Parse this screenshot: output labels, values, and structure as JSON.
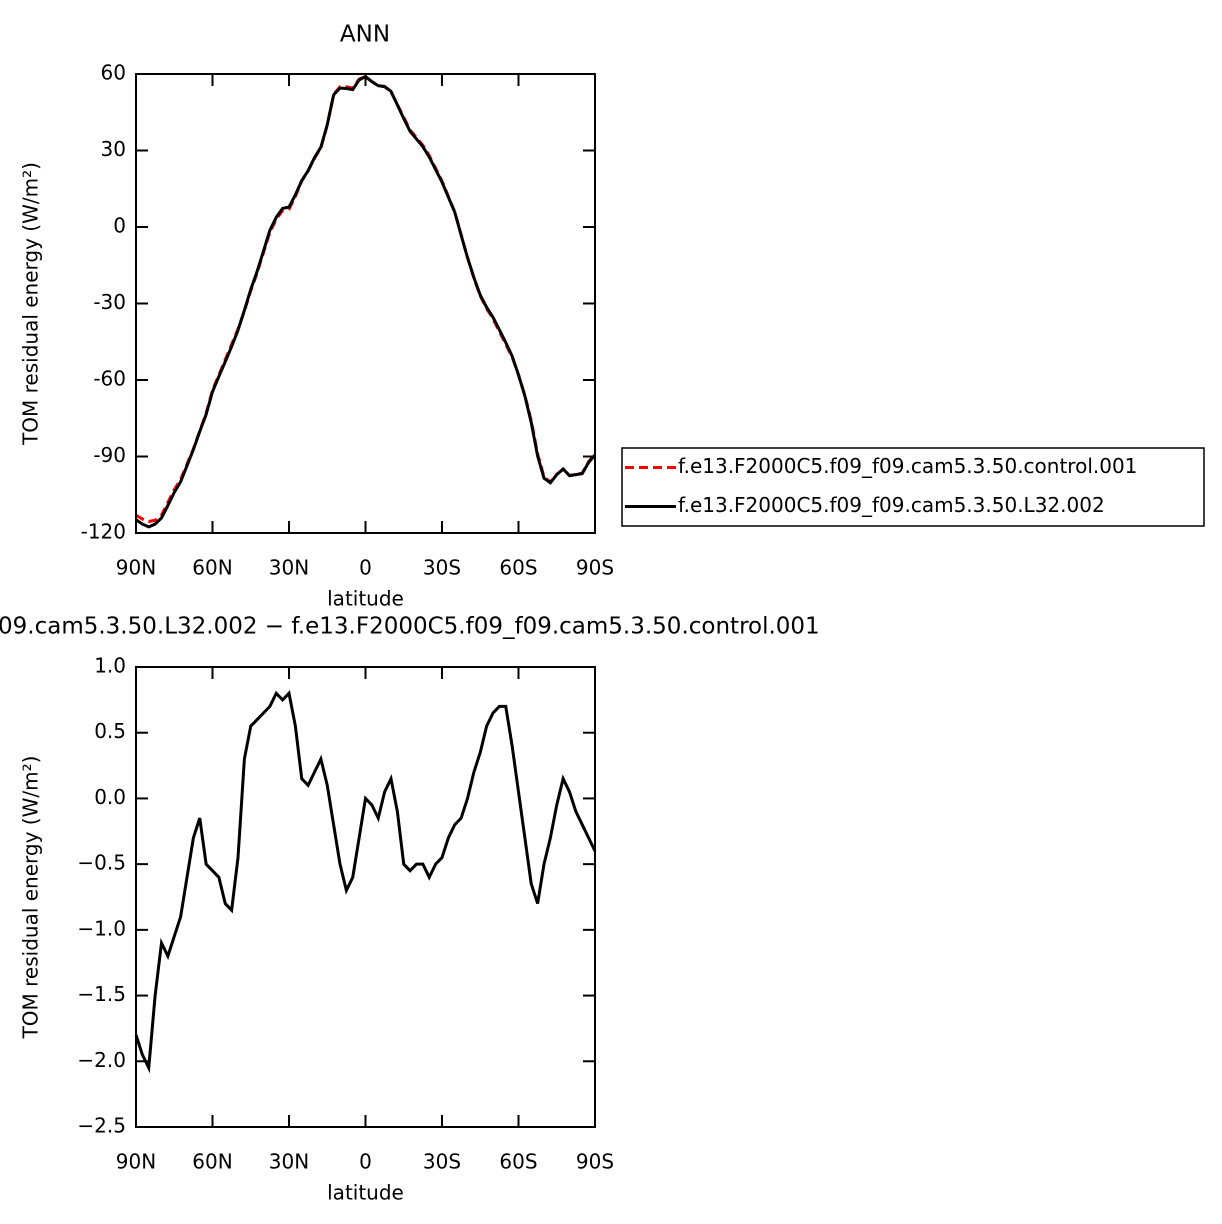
{
  "chart_data": [
    {
      "type": "line",
      "title": "ANN",
      "xlabel": "latitude",
      "ylabel": "TOM residual energy (W/m²)",
      "x": [
        90,
        87.5,
        85,
        82.5,
        80,
        77.5,
        75,
        72.5,
        70,
        67.5,
        65,
        62.5,
        60,
        57.5,
        55,
        52.5,
        50,
        47.5,
        45,
        42.5,
        40,
        37.5,
        35,
        32.5,
        30,
        27.5,
        25,
        22.5,
        20,
        17.5,
        15,
        12.5,
        10,
        7.5,
        5,
        2.5,
        0,
        -2.5,
        -5,
        -7.5,
        -10,
        -12.5,
        -15,
        -17.5,
        -20,
        -22.5,
        -25,
        -27.5,
        -30,
        -32.5,
        -35,
        -37.5,
        -40,
        -42.5,
        -45,
        -47.5,
        -50,
        -52.5,
        -55,
        -57.5,
        -60,
        -62.5,
        -65,
        -67.5,
        -70,
        -72.5,
        -75,
        -77.5,
        -80,
        -82.5,
        -85,
        -87.5,
        -90
      ],
      "series": [
        {
          "name": "f.e13.F2000C5.f09_f09.cam5.3.50.control.001",
          "color": "#ff0000",
          "linestyle": "dashed",
          "values": [
            -113,
            -114.5,
            -115.5,
            -115,
            -113,
            -108,
            -103,
            -99,
            -93,
            -87,
            -80,
            -73,
            -64,
            -58,
            -52,
            -46,
            -40,
            -33,
            -25,
            -18,
            -10,
            -2,
            3,
            6.5,
            7,
            12,
            18,
            22,
            27,
            31,
            40,
            52,
            55,
            55,
            54.5,
            58,
            59,
            57,
            55.5,
            55,
            53,
            48,
            43,
            38,
            35,
            32,
            28,
            23,
            18,
            12,
            6,
            -3,
            -12,
            -20,
            -27,
            -32,
            -36,
            -41,
            -46,
            -51,
            -58,
            -66,
            -76,
            -89,
            -98,
            -100,
            -97,
            -95,
            -97.5,
            -97,
            -96.5,
            -92,
            -89
          ]
        },
        {
          "name": "f.e13.F2000C5.f09_f09.cam5.3.50.L32.002",
          "color": "#000000",
          "linestyle": "solid",
          "values": [
            -114.8,
            -116.5,
            -117.6,
            -116.5,
            -114.1,
            -109.2,
            -104.1,
            -99.9,
            -93.6,
            -87.3,
            -80.2,
            -73.5,
            -64.6,
            -58.6,
            -52.8,
            -46.9,
            -40.5,
            -32.7,
            -24.5,
            -17.4,
            -9.4,
            -1.3,
            3.8,
            7.3,
            7.8,
            12.6,
            18.2,
            22.1,
            27.2,
            31.3,
            40.1,
            51.8,
            54.5,
            54.3,
            53.9,
            57.7,
            59,
            57,
            55.4,
            55.1,
            53.2,
            47.9,
            42.5,
            37.5,
            34.5,
            31.5,
            27.4,
            22.5,
            17.6,
            11.7,
            5.8,
            -3.2,
            -12,
            -19.8,
            -26.7,
            -31.5,
            -35.4,
            -40.3,
            -45.3,
            -50.6,
            -58,
            -66.3,
            -76.7,
            -89.8,
            -98.5,
            -100.3,
            -97.1,
            -94.9,
            -97.5,
            -97.1,
            -96.7,
            -92.3,
            -89.4
          ]
        }
      ],
      "xlim": [
        90,
        -90
      ],
      "xticks": [
        {
          "value": 90,
          "label": "90N"
        },
        {
          "value": 60,
          "label": "60N"
        },
        {
          "value": 30,
          "label": "30N"
        },
        0,
        {
          "value": -30,
          "label": "30S"
        },
        {
          "value": -60,
          "label": "60S"
        },
        {
          "value": -90,
          "label": "90S"
        }
      ],
      "ylim": [
        -120,
        60
      ],
      "yticks": [
        -120,
        -90,
        -60,
        -30,
        0,
        30,
        60
      ],
      "legend": "outside-right"
    },
    {
      "type": "line",
      "title": "09.cam5.3.50.L32.002 − f.e13.F2000C5.f09_f09.cam5.3.50.control.001",
      "xlabel": "latitude",
      "ylabel": "TOM residual energy (W/m²)",
      "x": [
        90,
        87.5,
        85,
        82.5,
        80,
        77.5,
        75,
        72.5,
        70,
        67.5,
        65,
        62.5,
        60,
        57.5,
        55,
        52.5,
        50,
        47.5,
        45,
        42.5,
        40,
        37.5,
        35,
        32.5,
        30,
        27.5,
        25,
        22.5,
        20,
        17.5,
        15,
        12.5,
        10,
        7.5,
        5,
        2.5,
        0,
        -2.5,
        -5,
        -7.5,
        -10,
        -12.5,
        -15,
        -17.5,
        -20,
        -22.5,
        -25,
        -27.5,
        -30,
        -32.5,
        -35,
        -37.5,
        -40,
        -42.5,
        -45,
        -47.5,
        -50,
        -52.5,
        -55,
        -57.5,
        -60,
        -62.5,
        -65,
        -67.5,
        -70,
        -72.5,
        -75,
        -77.5,
        -80,
        -82.5,
        -85,
        -87.5,
        -90
      ],
      "series": [
        {
          "color": "#000000",
          "linestyle": "solid",
          "values": [
            -1.8,
            -1.95,
            -2.05,
            -1.5,
            -1.1,
            -1.2,
            -1.05,
            -0.9,
            -0.6,
            -0.3,
            -0.15,
            -0.5,
            -0.55,
            -0.6,
            -0.8,
            -0.85,
            -0.45,
            0.3,
            0.55,
            0.6,
            0.65,
            0.7,
            0.8,
            0.75,
            0.8,
            0.55,
            0.15,
            0.1,
            0.2,
            0.3,
            0.1,
            -0.2,
            -0.5,
            -0.7,
            -0.6,
            -0.3,
            0,
            -0.05,
            -0.15,
            0.05,
            0.15,
            -0.1,
            -0.5,
            -0.55,
            -0.5,
            -0.5,
            -0.6,
            -0.5,
            -0.45,
            -0.3,
            -0.2,
            -0.15,
            0,
            0.2,
            0.35,
            0.55,
            0.65,
            0.7,
            0.7,
            0.4,
            0.05,
            -0.3,
            -0.65,
            -0.8,
            -0.5,
            -0.3,
            -0.05,
            0.15,
            0.05,
            -0.1,
            -0.2,
            -0.3,
            -0.4
          ]
        }
      ],
      "xlim": [
        90,
        -90
      ],
      "xticks": [
        {
          "value": 90,
          "label": "90N"
        },
        {
          "value": 60,
          "label": "60N"
        },
        {
          "value": 30,
          "label": "30N"
        },
        0,
        {
          "value": -30,
          "label": "30S"
        },
        {
          "value": -60,
          "label": "60S"
        },
        {
          "value": -90,
          "label": "90S"
        }
      ],
      "ylim": [
        -2.5,
        1
      ],
      "yticks": [
        {
          "value": -2.5,
          "label": "−2.5"
        },
        {
          "value": -2,
          "label": "−2.0"
        },
        {
          "value": -1.5,
          "label": "−1.5"
        },
        {
          "value": -1,
          "label": "−1.0"
        },
        {
          "value": -0.5,
          "label": "−0.5"
        },
        {
          "value": 0,
          "label": "0.0"
        },
        0.5,
        {
          "value": 1,
          "label": "1.0"
        }
      ]
    }
  ]
}
